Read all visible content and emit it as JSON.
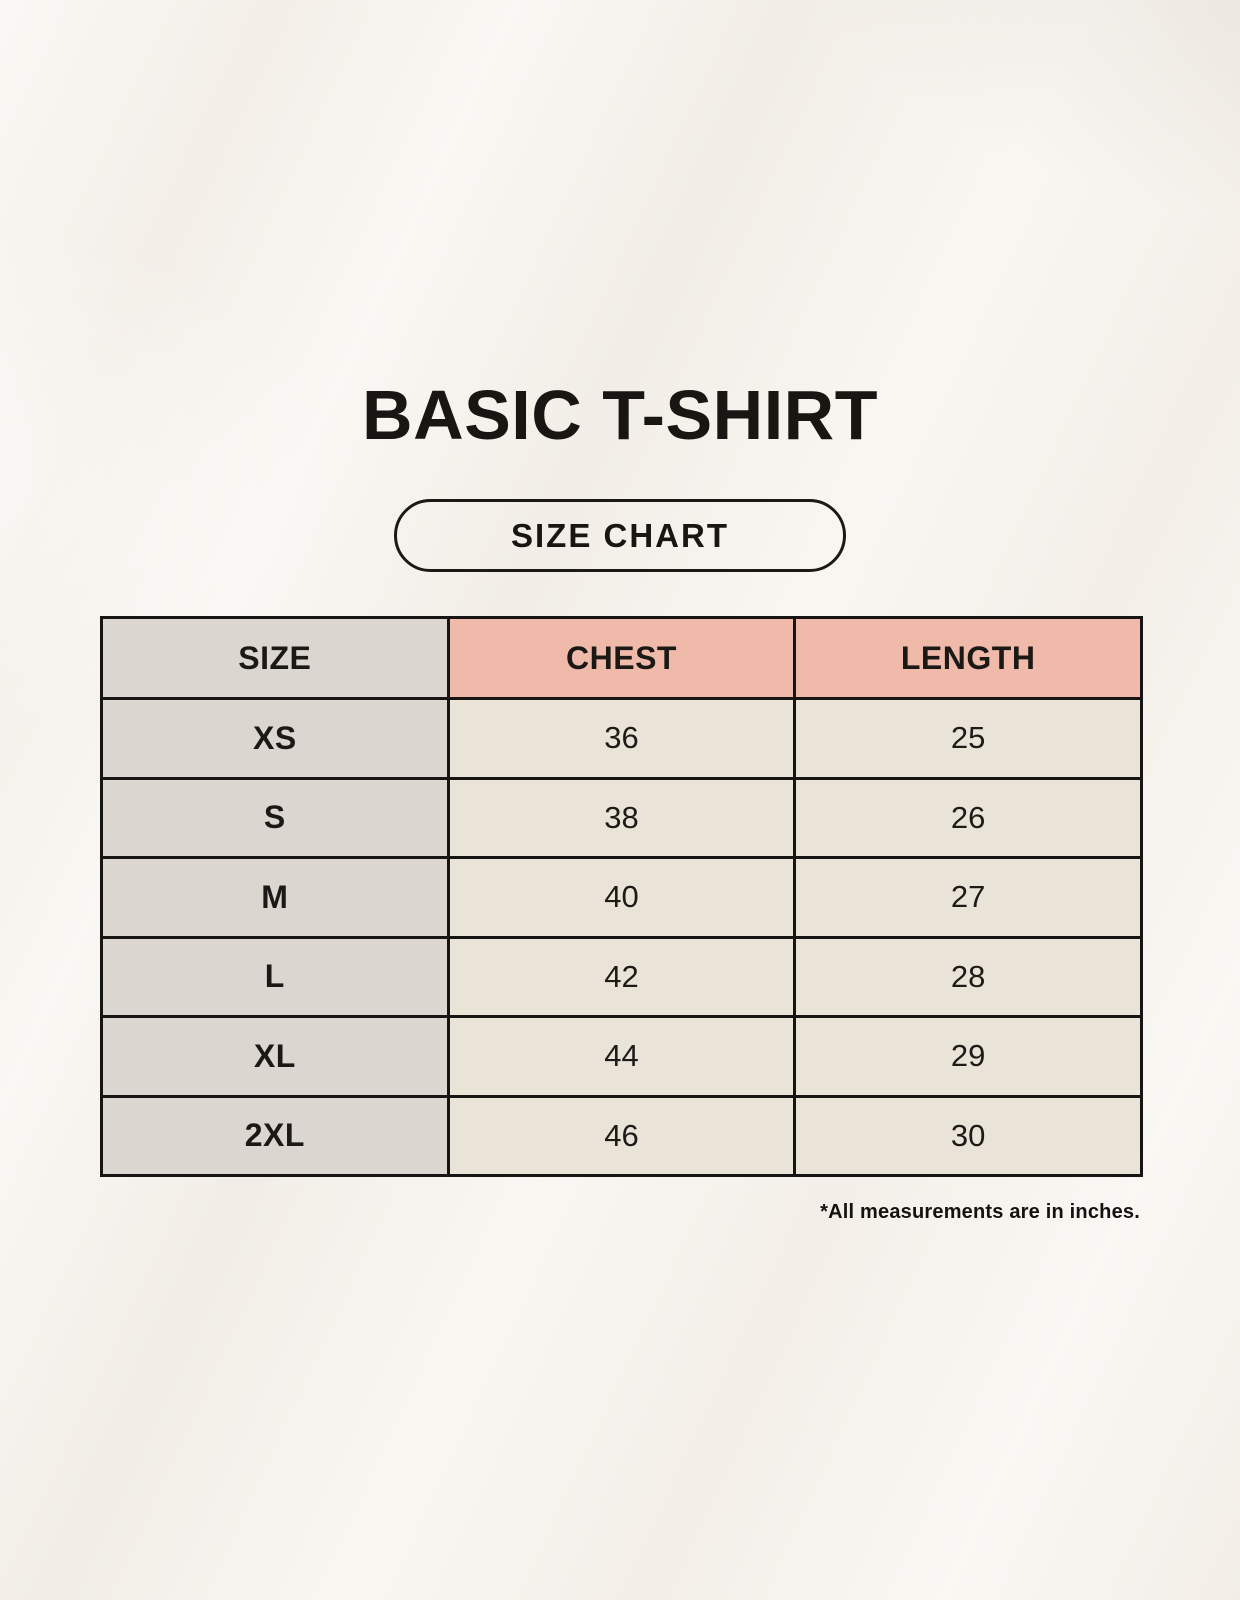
{
  "title": "BASIC T-SHIRT",
  "size_chart_button": "SIZE CHART",
  "chart_data": {
    "type": "table",
    "title": "BASIC T-SHIRT",
    "columns": [
      "SIZE",
      "CHEST",
      "LENGTH"
    ],
    "rows": [
      {
        "size": "XS",
        "chest": "36",
        "length": "25"
      },
      {
        "size": "S",
        "chest": "38",
        "length": "26"
      },
      {
        "size": "M",
        "chest": "40",
        "length": "27"
      },
      {
        "size": "L",
        "chest": "42",
        "length": "28"
      },
      {
        "size": "XL",
        "chest": "44",
        "length": "29"
      },
      {
        "size": "2XL",
        "chest": "46",
        "length": "30"
      }
    ],
    "footnote": "*All measurements are in inches."
  },
  "colors": {
    "background": "#F6F2EC",
    "header_pink": "#F0BAAA",
    "size_column_gray": "#DCD6D0",
    "cell_cream": "#EAE3D7",
    "table_border": "#161513",
    "text": "#181512"
  }
}
